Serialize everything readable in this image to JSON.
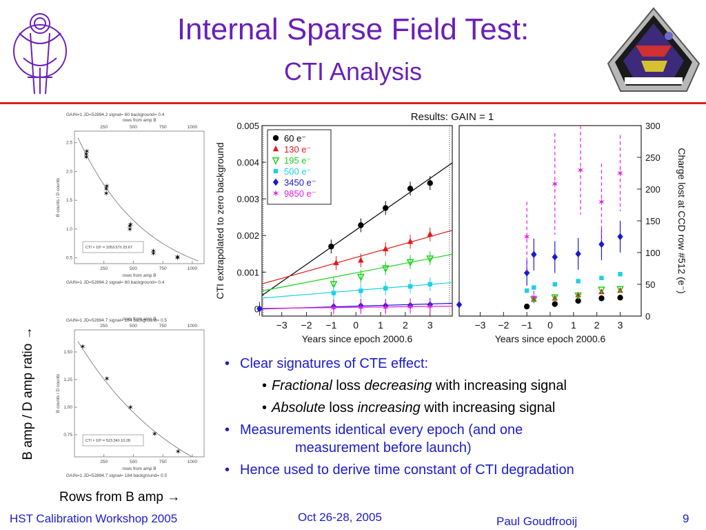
{
  "slide": {
    "title": "Internal Sparse Field Test:",
    "subtitle": "CTI Analysis",
    "left_ylabel": "B amp / D amp ratio →",
    "left_xlabel": "Rows from B amp →",
    "bullets": [
      {
        "text": "Clear signatures of CTE effect:"
      },
      {
        "em1": "Fractional",
        "mid1": " loss ",
        "em2": "decreasing",
        "tail": " with increasing signal"
      },
      {
        "em1": "Absolute",
        "mid1": " loss ",
        "em2": "increasing",
        "tail": " with increasing signal"
      },
      {
        "line1": "Measurements identical every epoch (and one",
        "line2": "measurement before launch)"
      },
      {
        "text": "Hence used to derive time constant of CTI degradation"
      }
    ],
    "footer": {
      "left": "HST Calibration Workshop 2005",
      "middle": "Oct 26-28, 2005",
      "name": "Paul Goudfrooij",
      "page": "9"
    },
    "colors": {
      "title": "#6a1fb8",
      "rule": "#d81e1e",
      "bullet": "#1a1ad0"
    }
  },
  "panels": [
    {
      "header1": "GAIN=1   JD=52894.2   signal=   60 background=   0.4",
      "top_title": "rows from amp B",
      "top_ticks": [
        "250",
        "500",
        "750",
        "1000"
      ],
      "yaxis_label": "B counts / D counts",
      "bottom_title": "rows from amp B",
      "bottom_header": "GAIN=1   JD=52894.2   signal=   60 background=   0.4",
      "fit_text": "CTI × 10⁶ = 1053.57± 23.67",
      "ylim": [
        0.4,
        2.7
      ],
      "xlim": [
        0,
        1100
      ],
      "yticks": [
        "0.5",
        "1.0",
        "1.5",
        "2.0",
        "2.5"
      ],
      "xticks": [
        "250",
        "500",
        "750",
        "1000"
      ],
      "points": [
        [
          100,
          2.25
        ],
        [
          100,
          2.3
        ],
        [
          105,
          2.35
        ],
        [
          270,
          1.62
        ],
        [
          270,
          1.7
        ],
        [
          275,
          1.75
        ],
        [
          470,
          1.0
        ],
        [
          470,
          1.05
        ],
        [
          475,
          1.08
        ],
        [
          670,
          0.58
        ],
        [
          670,
          0.62
        ],
        [
          875,
          0.5
        ],
        [
          875,
          0.52
        ]
      ],
      "curve_a": 2.72,
      "curve_b": 0.00172
    },
    {
      "header1": "GAIN=1   JD=52894.7   signal=  184 background=   0.5",
      "top_title": "rows from amp B",
      "top_ticks": [
        "250",
        "500",
        "750",
        "1000"
      ],
      "yaxis_label": "B counts / D counts",
      "bottom_title": "rows from amp B",
      "bottom_header": "GAIN=1   JD=52894.7   signal=  184 background=   0.5",
      "fit_text": "CTI × 10⁶ = 523.34± 10.28",
      "ylim": [
        0.55,
        1.7
      ],
      "xlim": [
        0,
        1100
      ],
      "yticks": [
        "0.75",
        "1.00",
        "1.25",
        "1.50"
      ],
      "xticks": [
        "250",
        "500",
        "750",
        "1000"
      ],
      "points": [
        [
          70,
          1.55
        ],
        [
          275,
          1.26
        ],
        [
          475,
          1.0
        ],
        [
          680,
          0.76
        ],
        [
          880,
          0.6
        ]
      ],
      "curve_a": 1.65,
      "curve_b": 0.0011
    }
  ],
  "chart_data": {
    "type": "scatter",
    "title": "Results:  GAIN = 1",
    "left": {
      "xlabel": "Years since epoch 2000.6",
      "ylabel": "CTI extrapolated to zero background",
      "xlim": [
        -3.8,
        3.9
      ],
      "ylim": [
        -0.0002,
        0.005
      ],
      "xticks": [
        "−3",
        "−2",
        "−1",
        "0",
        "1",
        "2",
        "3"
      ],
      "yticks": [
        "0",
        "0.001",
        "0.002",
        "0.003",
        "0.004",
        "0.005"
      ],
      "series": [
        {
          "name": "60 e⁻",
          "color": "#000000",
          "marker": "circle",
          "x": [
            -1.0,
            0.2,
            1.2,
            2.2,
            3.0
          ],
          "y": [
            0.0017,
            0.00228,
            0.00275,
            0.00328,
            0.00343
          ],
          "slope": 0.00047,
          "intercept": 0.00215
        },
        {
          "name": "130 e⁻",
          "color": "#e01a1a",
          "marker": "triangle",
          "x": [
            -0.8,
            0.2,
            1.2,
            2.2,
            3.0
          ],
          "y": [
            0.00125,
            0.00132,
            0.00163,
            0.00183,
            0.00203
          ],
          "slope": 0.00019,
          "intercept": 0.0014
        },
        {
          "name": "195 e⁻",
          "color": "#1ad11a",
          "marker": "triangle-down",
          "x": [
            -0.9,
            0.2,
            1.2,
            2.2,
            3.0
          ],
          "y": [
            0.00068,
            0.00088,
            0.00111,
            0.00128,
            0.00138
          ],
          "slope": 0.00013,
          "intercept": 0.00098
        },
        {
          "name": "500 e⁻",
          "color": "#1ad1e6",
          "marker": "square",
          "x": [
            -0.9,
            0.2,
            1.2,
            2.2,
            3.0
          ],
          "y": [
            0.00043,
            0.00049,
            0.00056,
            0.00061,
            0.00067
          ],
          "slope": 5.5e-05,
          "intercept": 0.0005
        },
        {
          "name": "3450 e⁻",
          "color": "#1a1ad0",
          "marker": "diamond",
          "x": [
            -3.9,
            -0.9,
            0.2,
            1.2,
            2.2,
            3.0
          ],
          "y": [
            0.0,
            6e-05,
            8e-05,
            8e-05,
            9e-05,
            0.00011
          ],
          "slope": 2e-05,
          "intercept": 7e-05
        },
        {
          "name": "9850 e⁻",
          "color": "#e61ae6",
          "marker": "star",
          "x": [
            -0.9,
            0.2,
            1.2,
            2.2,
            3.0
          ],
          "y": [
            3e-05,
            4e-05,
            4e-05,
            5e-05,
            6e-05
          ],
          "slope": 8e-06,
          "intercept": 4e-05
        }
      ]
    },
    "right": {
      "xlabel": "Years since epoch 2000.6",
      "ylabel": "Charge lost at CCD row #512 (e⁻)",
      "xlim": [
        -3.9,
        3.9
      ],
      "ylim": [
        0,
        300
      ],
      "xticks": [
        "−3",
        "−2",
        "−1",
        "0",
        "1",
        "2",
        "3"
      ],
      "yticks": [
        "0",
        "50",
        "100",
        "150",
        "200",
        "250",
        "300"
      ],
      "series": [
        {
          "name": "60 e⁻",
          "color": "#000000",
          "marker": "circle",
          "x": [
            -1.0,
            0.2,
            1.2,
            2.2,
            3.0
          ],
          "y": [
            15,
            19,
            24,
            28,
            29
          ]
        },
        {
          "name": "130 e⁻",
          "color": "#e01a1a",
          "marker": "triangle",
          "x": [
            -0.7,
            0.2,
            1.2,
            2.2,
            3.0
          ],
          "y": [
            26,
            28,
            33,
            38,
            40
          ]
        },
        {
          "name": "195 e⁻",
          "color": "#1ad11a",
          "marker": "triangle-down",
          "x": [
            -0.7,
            0.2,
            1.2,
            2.2,
            3.0
          ],
          "y": [
            27,
            30,
            33,
            42,
            43
          ]
        },
        {
          "name": "500 e⁻",
          "color": "#1ad1e6",
          "marker": "square",
          "x": [
            -1.0,
            -0.7,
            0.2,
            1.2,
            2.2,
            3.0
          ],
          "y": [
            40,
            45,
            50,
            55,
            60,
            66
          ]
        },
        {
          "name": "3450 e⁻",
          "color": "#1a1ad0",
          "marker": "diamond",
          "x": [
            -3.9,
            -1.0,
            -0.7,
            0.2,
            1.2,
            2.2,
            3.0
          ],
          "y": [
            18,
            68,
            97,
            93,
            98,
            113,
            125
          ],
          "err": [
            0,
            20,
            25,
            25,
            25,
            25,
            25
          ]
        },
        {
          "name": "9850 e⁻",
          "color": "#e61ae6",
          "marker": "star",
          "x": [
            -1.0,
            -0.7,
            0.2,
            1.3,
            2.2,
            3.0
          ],
          "y": [
            125,
            30,
            208,
            230,
            180,
            225
          ],
          "err": [
            55,
            10,
            80,
            70,
            60,
            60
          ]
        }
      ]
    }
  }
}
